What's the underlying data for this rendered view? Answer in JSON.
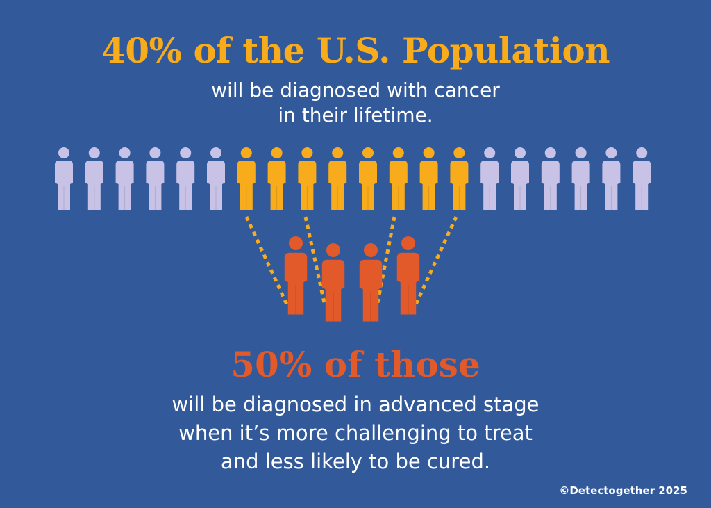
{
  "headline": "40% of the U.S. Population",
  "subline": [
    "will be diagnosed with cancer",
    "in their lifetime."
  ],
  "headline2": "50% of those",
  "subline2": [
    "will be diagnosed in advanced stage",
    "when it’s more challenging to treat",
    "and less likely to be cured."
  ],
  "copyright": "©Detectogether 2025",
  "population_figures": {
    "total": 20,
    "highlighted_start": 6,
    "highlighted_count": 8
  },
  "advanced_figures": {
    "count": 4
  },
  "colors": {
    "background": "#325999",
    "population": "#c8c3e6",
    "diagnosed": "#f8ac1c",
    "advanced": "#e2592a",
    "text": "#ffffff"
  }
}
